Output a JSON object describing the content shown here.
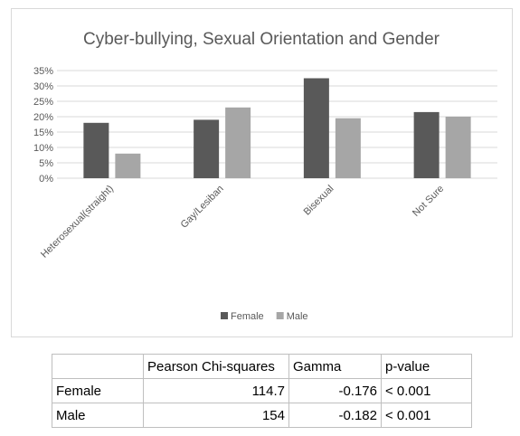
{
  "chart_data": {
    "type": "bar",
    "title": "Cyber-bullying, Sexual Orientation and Gender",
    "categories": [
      "Heterosexual(straight)",
      "Gay/Lesiban",
      "Bisexual",
      "Not Sure"
    ],
    "series": [
      {
        "name": "Female",
        "values": [
          18,
          19,
          32.5,
          21.5
        ],
        "color": "#595959"
      },
      {
        "name": "Male",
        "values": [
          8,
          23,
          19.5,
          20
        ],
        "color": "#a6a6a6"
      }
    ],
    "ylim": [
      0,
      35
    ],
    "yticks": [
      "0%",
      "5%",
      "10%",
      "15%",
      "20%",
      "25%",
      "30%",
      "35%"
    ],
    "grid": true,
    "legend_position": "bottom"
  },
  "table": {
    "headers": [
      "",
      "Pearson Chi-squares",
      "Gamma",
      "p-value"
    ],
    "rows": [
      [
        "Female",
        "114.7",
        "-0.176",
        "< 0.001"
      ],
      [
        "Male",
        "154",
        "-0.182",
        "< 0.001"
      ]
    ]
  }
}
